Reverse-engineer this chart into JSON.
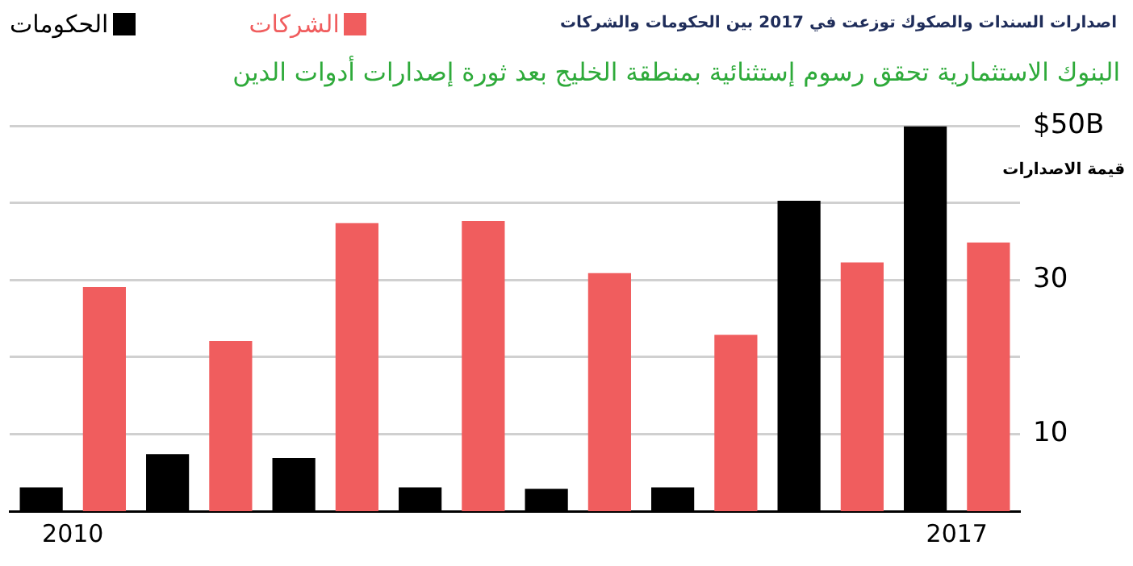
{
  "chart_data": {
    "type": "bar",
    "title": "اصدارات السندات والصكوك توزعت في 2017 بين الحكومات والشركات",
    "subtitle": "البنوك الاستثمارية تحقق رسوم إستثنائية بمنطقة الخليج بعد ثورة إصدارات أدوات الدين",
    "ylabel": "قيمة الاصدارات",
    "categories": [
      "2010",
      null,
      null,
      null,
      null,
      null,
      null,
      "2017"
    ],
    "series": [
      {
        "name": "الحكومات",
        "color": "#000000",
        "values": [
          3.1,
          7.4,
          6.9,
          3.1,
          2.9,
          3.1,
          40.3,
          50
        ]
      },
      {
        "name": "الشركات",
        "color": "#f05d5e",
        "values": [
          29.1,
          22.1,
          37.4,
          37.7,
          30.9,
          22.9,
          32.3,
          34.9
        ]
      }
    ],
    "ylim": [
      0,
      50
    ],
    "yticks": [
      {
        "value": 10,
        "label": "10"
      },
      {
        "value": 20,
        "label": null
      },
      {
        "value": 30,
        "label": "30"
      },
      {
        "value": 40,
        "label": null
      },
      {
        "value": 50,
        "label": "$50B"
      }
    ],
    "grid": "y",
    "legend": "top left"
  }
}
